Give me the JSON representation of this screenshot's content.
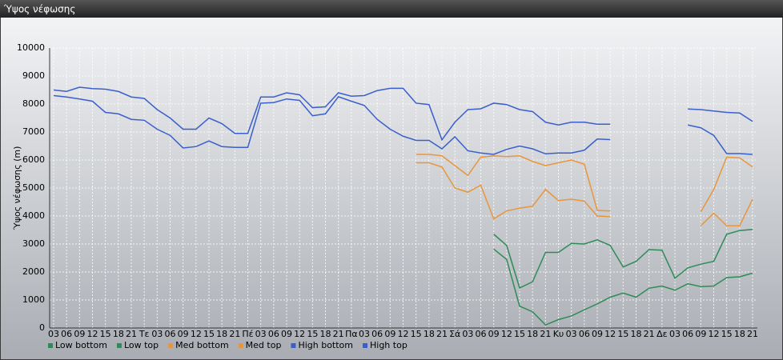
{
  "chart_data": {
    "type": "line",
    "title": "Ύψος νέφωσης",
    "y_label": "Ύψος νέφωσης (m)",
    "categories": [
      "03",
      "06",
      "09",
      "12",
      "15",
      "18",
      "21",
      "Τε",
      "03",
      "06",
      "09",
      "12",
      "15",
      "18",
      "21",
      "Πέ",
      "03",
      "06",
      "09",
      "12",
      "15",
      "18",
      "21",
      "Πα",
      "03",
      "06",
      "09",
      "12",
      "15",
      "18",
      "21",
      "Σά",
      "03",
      "06",
      "09",
      "12",
      "15",
      "18",
      "21",
      "Κυ",
      "03",
      "06",
      "09",
      "12",
      "15",
      "18",
      "21",
      "Δε",
      "03",
      "06",
      "09",
      "12",
      "15",
      "18",
      "21"
    ],
    "ylim": [
      0,
      10000
    ],
    "yticks": [
      0,
      1000,
      2000,
      3000,
      4000,
      5000,
      6000,
      7000,
      8000,
      9000,
      10000
    ],
    "grid": true,
    "legend": "bottom-left",
    "series": [
      {
        "name": "Low bottom",
        "color": "#2e8b57",
        "values": [
          null,
          null,
          null,
          null,
          null,
          null,
          null,
          null,
          null,
          null,
          null,
          null,
          null,
          null,
          null,
          null,
          null,
          null,
          null,
          null,
          null,
          null,
          null,
          null,
          null,
          null,
          null,
          null,
          null,
          null,
          null,
          null,
          null,
          null,
          2820,
          2450,
          780,
          580,
          110,
          300,
          430,
          650,
          860,
          1100,
          1250,
          1100,
          1420,
          1500,
          1350,
          1580,
          1480,
          1500,
          1800,
          1830,
          1960
        ]
      },
      {
        "name": "Low top",
        "color": "#2e8b57",
        "values": [
          null,
          null,
          null,
          null,
          null,
          null,
          null,
          null,
          null,
          null,
          null,
          null,
          null,
          null,
          null,
          null,
          null,
          null,
          null,
          null,
          null,
          null,
          null,
          null,
          null,
          null,
          null,
          null,
          null,
          null,
          null,
          null,
          null,
          null,
          3350,
          2950,
          1430,
          1650,
          2700,
          2700,
          3020,
          3000,
          3150,
          2950,
          2180,
          2380,
          2800,
          2780,
          1780,
          2150,
          2280,
          2380,
          3350,
          3480,
          3520
        ]
      },
      {
        "name": "Med bottom",
        "color": "#e8963c",
        "values": [
          null,
          null,
          null,
          null,
          null,
          null,
          null,
          null,
          null,
          null,
          null,
          null,
          null,
          null,
          null,
          null,
          null,
          null,
          null,
          null,
          null,
          null,
          null,
          null,
          null,
          null,
          null,
          null,
          5900,
          5900,
          5750,
          5000,
          4850,
          5100,
          3900,
          4180,
          4280,
          4350,
          4950,
          4550,
          4600,
          4530,
          4000,
          3980,
          null,
          null,
          null,
          null,
          null,
          null,
          3650,
          4100,
          3650,
          3650,
          4600
        ]
      },
      {
        "name": "Med top",
        "color": "#e8963c",
        "values": [
          null,
          null,
          null,
          null,
          null,
          null,
          null,
          null,
          null,
          null,
          null,
          null,
          null,
          null,
          null,
          null,
          null,
          null,
          null,
          null,
          null,
          null,
          null,
          null,
          null,
          null,
          null,
          null,
          6200,
          6200,
          6150,
          5800,
          5450,
          6100,
          6150,
          6120,
          6150,
          5950,
          5800,
          5900,
          6000,
          5850,
          4200,
          4180,
          null,
          null,
          null,
          null,
          null,
          null,
          4150,
          4950,
          6100,
          6080,
          5750
        ]
      },
      {
        "name": "High bottom",
        "color": "#3a5fcd",
        "values": [
          8300,
          8250,
          8180,
          8100,
          7700,
          7650,
          7450,
          7420,
          7100,
          6880,
          6430,
          6480,
          6680,
          6480,
          6450,
          6450,
          8030,
          8050,
          8180,
          8130,
          7580,
          7650,
          8260,
          8100,
          7950,
          7450,
          7100,
          6850,
          6700,
          6700,
          6400,
          6830,
          6330,
          6250,
          6200,
          6380,
          6500,
          6400,
          6220,
          6250,
          6250,
          6350,
          6750,
          6730,
          null,
          null,
          null,
          null,
          null,
          7250,
          7150,
          6880,
          6230,
          6230,
          6200
        ]
      },
      {
        "name": "High top",
        "color": "#3a5fcd",
        "values": [
          8500,
          8450,
          8600,
          8550,
          8530,
          8450,
          8250,
          8200,
          7800,
          7500,
          7100,
          7100,
          7500,
          7300,
          6950,
          6950,
          8250,
          8250,
          8400,
          8330,
          7870,
          7900,
          8400,
          8280,
          8300,
          8480,
          8560,
          8560,
          8030,
          7980,
          6720,
          7350,
          7800,
          7830,
          8030,
          7980,
          7800,
          7730,
          7350,
          7250,
          7350,
          7350,
          7280,
          7280,
          null,
          null,
          null,
          null,
          null,
          7820,
          7800,
          7750,
          7700,
          7680,
          7380
        ]
      }
    ]
  }
}
